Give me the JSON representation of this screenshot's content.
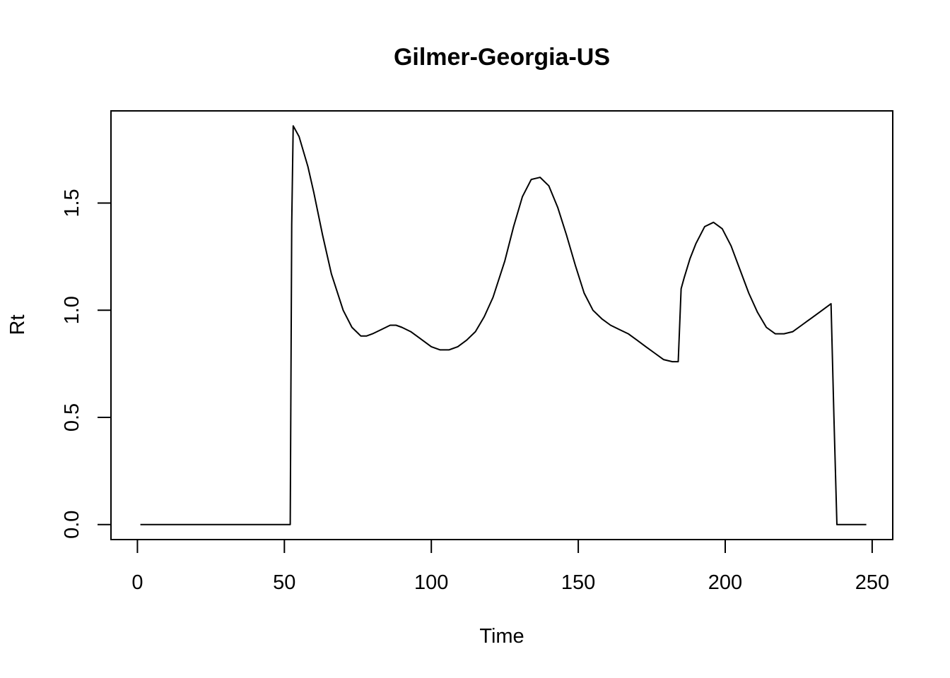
{
  "chart_data": {
    "type": "line",
    "title": "Gilmer-Georgia-US",
    "xlabel": "Time",
    "ylabel": "Rt",
    "xlim": [
      -9,
      257
    ],
    "ylim": [
      -0.07,
      1.93
    ],
    "xticks": [
      0,
      50,
      100,
      150,
      200,
      250
    ],
    "yticks": [
      0.0,
      0.5,
      1.0,
      1.5
    ],
    "xtick_labels": [
      "0",
      "50",
      "100",
      "150",
      "200",
      "250"
    ],
    "ytick_labels": [
      "0.0",
      "0.5",
      "1.0",
      "1.5"
    ],
    "grid": false,
    "legend": "none",
    "line_color": "#000000",
    "series": [
      {
        "x": [
          1,
          10,
          20,
          30,
          40,
          52,
          52.5,
          53,
          55,
          58,
          60,
          63,
          66,
          70,
          73,
          76,
          78,
          80,
          83,
          86,
          88,
          90,
          93,
          96,
          100,
          103,
          106,
          109,
          112,
          115,
          118,
          121,
          125,
          128,
          131,
          134,
          137,
          140,
          143,
          146,
          149,
          152,
          155,
          158,
          161,
          164,
          167,
          170,
          173,
          176,
          179,
          182,
          184,
          185,
          186,
          188,
          190,
          193,
          196,
          199,
          202,
          205,
          208,
          211,
          214,
          217,
          220,
          223,
          226,
          229,
          232,
          236,
          237,
          238,
          240,
          245,
          248
        ],
        "y": [
          0,
          0,
          0,
          0,
          0,
          0,
          1.4,
          1.86,
          1.81,
          1.67,
          1.55,
          1.35,
          1.17,
          1.0,
          0.92,
          0.88,
          0.88,
          0.89,
          0.91,
          0.93,
          0.93,
          0.92,
          0.9,
          0.87,
          0.83,
          0.815,
          0.815,
          0.83,
          0.86,
          0.9,
          0.97,
          1.06,
          1.23,
          1.39,
          1.53,
          1.61,
          1.62,
          1.58,
          1.48,
          1.35,
          1.21,
          1.08,
          1.0,
          0.96,
          0.93,
          0.91,
          0.89,
          0.86,
          0.83,
          0.8,
          0.77,
          0.76,
          0.76,
          1.1,
          1.15,
          1.24,
          1.31,
          1.39,
          1.41,
          1.38,
          1.3,
          1.19,
          1.08,
          0.99,
          0.92,
          0.89,
          0.89,
          0.9,
          0.93,
          0.96,
          0.99,
          1.03,
          0.5,
          0,
          0,
          0,
          0
        ]
      }
    ]
  }
}
